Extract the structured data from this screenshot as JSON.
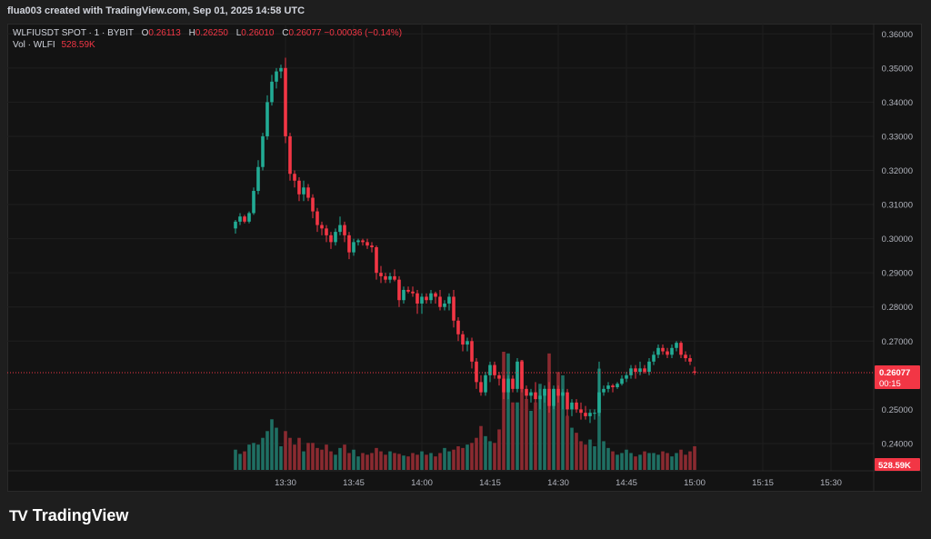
{
  "caption": "flua003 created with TradingView.com, Sep 01, 2025 14:58 UTC",
  "legend": {
    "symbol": "WLFIUSDT SPOT · 1 · BYBIT",
    "o_label": "O",
    "o_value": "0.26113",
    "h_label": "H",
    "h_value": "0.26250",
    "l_label": "L",
    "l_value": "0.26010",
    "c_label": "C",
    "c_value": "0.26077",
    "change": "−0.00036 (−0.14%)",
    "vol_label": "Vol · WLFI",
    "vol_value": "528.59K"
  },
  "price_badge": {
    "price": "0.26077",
    "timer": "00:15"
  },
  "volume_badge": "528.59K",
  "logo_text": "TradingView",
  "colors": {
    "up": "#22ab94",
    "down": "#f23645",
    "up_vol": "#1f6f63",
    "down_vol": "#8a2a30",
    "bg": "#131313",
    "grid": "#1f1f1f",
    "text": "#b2b5be"
  },
  "chart_data": {
    "type": "candlestick",
    "symbol": "WLFIUSDT",
    "interval": "1",
    "ylim": [
      0.232,
      0.363
    ],
    "y_ticks": [
      "0.36000",
      "0.35000",
      "0.34000",
      "0.33000",
      "0.32000",
      "0.31000",
      "0.30000",
      "0.29000",
      "0.28000",
      "0.27000",
      "0.25000",
      "0.24000"
    ],
    "x_ticks": [
      "13:30",
      "13:45",
      "14:00",
      "14:15",
      "14:30",
      "14:45",
      "15:00",
      "15:15",
      "15:30"
    ],
    "x_start": "13:19",
    "last_price": 0.26077,
    "candles": [
      [
        0.303,
        0.3055,
        0.3015,
        0.305,
        120
      ],
      [
        0.305,
        0.3075,
        0.304,
        0.3065,
        95
      ],
      [
        0.3065,
        0.307,
        0.3045,
        0.305,
        110
      ],
      [
        0.305,
        0.308,
        0.3045,
        0.3075,
        150
      ],
      [
        0.3075,
        0.315,
        0.307,
        0.314,
        160
      ],
      [
        0.314,
        0.323,
        0.313,
        0.321,
        150
      ],
      [
        0.321,
        0.331,
        0.32,
        0.33,
        190
      ],
      [
        0.33,
        0.342,
        0.329,
        0.34,
        230
      ],
      [
        0.34,
        0.348,
        0.339,
        0.346,
        300
      ],
      [
        0.346,
        0.35,
        0.344,
        0.349,
        250
      ],
      [
        0.349,
        0.351,
        0.347,
        0.35,
        140
      ],
      [
        0.35,
        0.353,
        0.328,
        0.33,
        230
      ],
      [
        0.33,
        0.331,
        0.317,
        0.319,
        190
      ],
      [
        0.319,
        0.32,
        0.315,
        0.317,
        150
      ],
      [
        0.317,
        0.318,
        0.311,
        0.313,
        190
      ],
      [
        0.313,
        0.317,
        0.311,
        0.315,
        110
      ],
      [
        0.315,
        0.316,
        0.311,
        0.312,
        160
      ],
      [
        0.312,
        0.313,
        0.306,
        0.308,
        160
      ],
      [
        0.308,
        0.309,
        0.302,
        0.304,
        130
      ],
      [
        0.304,
        0.305,
        0.301,
        0.303,
        120
      ],
      [
        0.303,
        0.304,
        0.299,
        0.301,
        150
      ],
      [
        0.301,
        0.302,
        0.297,
        0.299,
        110
      ],
      [
        0.299,
        0.303,
        0.298,
        0.302,
        90
      ],
      [
        0.302,
        0.3065,
        0.301,
        0.304,
        130
      ],
      [
        0.304,
        0.305,
        0.299,
        0.301,
        150
      ],
      [
        0.301,
        0.302,
        0.294,
        0.296,
        100
      ],
      [
        0.296,
        0.3,
        0.295,
        0.299,
        120
      ],
      [
        0.299,
        0.3,
        0.298,
        0.2995,
        80
      ],
      [
        0.2995,
        0.3,
        0.298,
        0.299,
        100
      ],
      [
        0.299,
        0.3,
        0.297,
        0.298,
        90
      ],
      [
        0.298,
        0.299,
        0.296,
        0.2975,
        100
      ],
      [
        0.2975,
        0.298,
        0.288,
        0.29,
        130
      ],
      [
        0.29,
        0.292,
        0.287,
        0.289,
        110
      ],
      [
        0.289,
        0.29,
        0.287,
        0.288,
        90
      ],
      [
        0.288,
        0.29,
        0.287,
        0.289,
        110
      ],
      [
        0.289,
        0.291,
        0.2875,
        0.288,
        100
      ],
      [
        0.288,
        0.289,
        0.28,
        0.282,
        95
      ],
      [
        0.282,
        0.286,
        0.281,
        0.285,
        85
      ],
      [
        0.285,
        0.286,
        0.284,
        0.2845,
        80
      ],
      [
        0.2845,
        0.286,
        0.283,
        0.284,
        100
      ],
      [
        0.284,
        0.285,
        0.278,
        0.281,
        90
      ],
      [
        0.281,
        0.284,
        0.278,
        0.283,
        110
      ],
      [
        0.283,
        0.284,
        0.281,
        0.282,
        90
      ],
      [
        0.282,
        0.285,
        0.281,
        0.284,
        100
      ],
      [
        0.284,
        0.2845,
        0.281,
        0.283,
        80
      ],
      [
        0.283,
        0.285,
        0.279,
        0.28,
        100
      ],
      [
        0.28,
        0.282,
        0.279,
        0.281,
        130
      ],
      [
        0.281,
        0.284,
        0.279,
        0.283,
        110
      ],
      [
        0.283,
        0.285,
        0.274,
        0.276,
        120
      ],
      [
        0.276,
        0.277,
        0.27,
        0.272,
        140
      ],
      [
        0.272,
        0.273,
        0.267,
        0.269,
        130
      ],
      [
        0.269,
        0.271,
        0.267,
        0.27,
        150
      ],
      [
        0.27,
        0.271,
        0.262,
        0.264,
        160
      ],
      [
        0.264,
        0.265,
        0.256,
        0.258,
        190
      ],
      [
        0.258,
        0.26,
        0.254,
        0.255,
        260
      ],
      [
        0.255,
        0.261,
        0.254,
        0.26,
        200
      ],
      [
        0.26,
        0.264,
        0.258,
        0.263,
        170
      ],
      [
        0.263,
        0.264,
        0.259,
        0.26,
        160
      ],
      [
        0.26,
        0.261,
        0.257,
        0.259,
        240
      ],
      [
        0.259,
        0.26,
        0.253,
        0.255,
        700
      ],
      [
        0.255,
        0.26,
        0.253,
        0.259,
        690
      ],
      [
        0.259,
        0.26,
        0.255,
        0.256,
        400
      ],
      [
        0.256,
        0.265,
        0.255,
        0.264,
        400
      ],
      [
        0.264,
        0.2645,
        0.255,
        0.256,
        650
      ],
      [
        0.256,
        0.257,
        0.253,
        0.254,
        420
      ],
      [
        0.254,
        0.256,
        0.252,
        0.255,
        350
      ],
      [
        0.255,
        0.258,
        0.252,
        0.253,
        400
      ],
      [
        0.253,
        0.256,
        0.25,
        0.254,
        510
      ],
      [
        0.254,
        0.257,
        0.252,
        0.256,
        480
      ],
      [
        0.256,
        0.258,
        0.249,
        0.251,
        690
      ],
      [
        0.251,
        0.257,
        0.25,
        0.256,
        480
      ],
      [
        0.256,
        0.257,
        0.252,
        0.254,
        580
      ],
      [
        0.254,
        0.256,
        0.25,
        0.255,
        560
      ],
      [
        0.255,
        0.256,
        0.248,
        0.25,
        320
      ],
      [
        0.25,
        0.253,
        0.248,
        0.252,
        250
      ],
      [
        0.252,
        0.253,
        0.249,
        0.25,
        220
      ],
      [
        0.25,
        0.252,
        0.247,
        0.249,
        170
      ],
      [
        0.249,
        0.251,
        0.247,
        0.248,
        150
      ],
      [
        0.248,
        0.25,
        0.246,
        0.249,
        180
      ],
      [
        0.249,
        0.25,
        0.247,
        0.249,
        140
      ],
      [
        0.249,
        0.264,
        0.248,
        0.255,
        600
      ],
      [
        0.255,
        0.257,
        0.254,
        0.256,
        170
      ],
      [
        0.256,
        0.258,
        0.255,
        0.257,
        130
      ],
      [
        0.257,
        0.2575,
        0.255,
        0.2565,
        110
      ],
      [
        0.2565,
        0.258,
        0.256,
        0.2575,
        90
      ],
      [
        0.2575,
        0.26,
        0.257,
        0.259,
        100
      ],
      [
        0.259,
        0.261,
        0.258,
        0.26,
        120
      ],
      [
        0.26,
        0.263,
        0.259,
        0.262,
        100
      ],
      [
        0.262,
        0.263,
        0.259,
        0.261,
        80
      ],
      [
        0.261,
        0.264,
        0.26,
        0.262,
        90
      ],
      [
        0.262,
        0.263,
        0.2605,
        0.261,
        110
      ],
      [
        0.261,
        0.265,
        0.26,
        0.264,
        100
      ],
      [
        0.264,
        0.267,
        0.263,
        0.266,
        100
      ],
      [
        0.266,
        0.269,
        0.265,
        0.268,
        90
      ],
      [
        0.268,
        0.269,
        0.266,
        0.267,
        110
      ],
      [
        0.267,
        0.268,
        0.265,
        0.266,
        100
      ],
      [
        0.266,
        0.269,
        0.265,
        0.268,
        80
      ],
      [
        0.268,
        0.27,
        0.267,
        0.2695,
        100
      ],
      [
        0.2695,
        0.27,
        0.265,
        0.266,
        120
      ],
      [
        0.266,
        0.267,
        0.264,
        0.265,
        90
      ],
      [
        0.265,
        0.266,
        0.263,
        0.264,
        110
      ],
      [
        0.26113,
        0.2625,
        0.2601,
        0.26077,
        140
      ]
    ]
  }
}
